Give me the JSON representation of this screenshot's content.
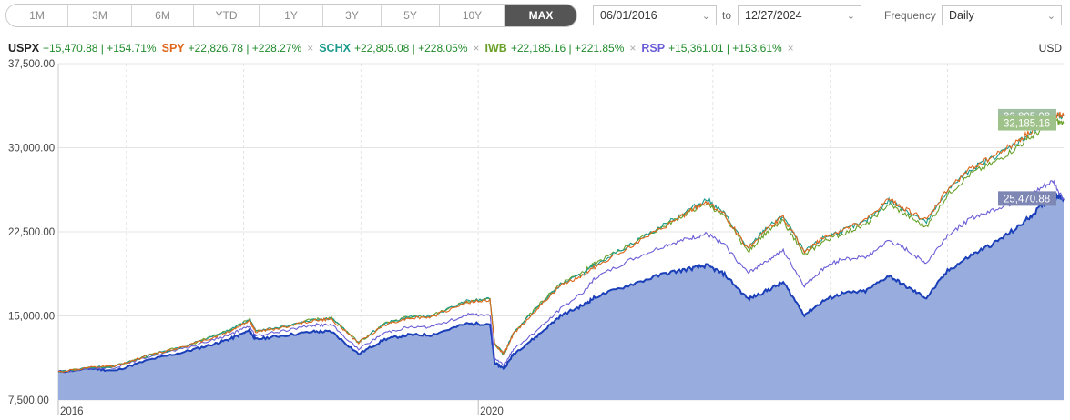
{
  "toolbar": {
    "ranges": [
      {
        "label": "1M",
        "active": false
      },
      {
        "label": "3M",
        "active": false
      },
      {
        "label": "6M",
        "active": false
      },
      {
        "label": "YTD",
        "active": false
      },
      {
        "label": "1Y",
        "active": false
      },
      {
        "label": "3Y",
        "active": false
      },
      {
        "label": "5Y",
        "active": false
      },
      {
        "label": "10Y",
        "active": false
      },
      {
        "label": "MAX",
        "active": true
      }
    ],
    "start_date": "06/01/2016",
    "to_label": "to",
    "end_date": "12/27/2024",
    "frequency_label": "Frequency",
    "frequency_value": "Daily"
  },
  "legend": {
    "currency": "USD",
    "items": [
      {
        "ticker": "USPX",
        "value": "+15,470.88 | +154.71%",
        "color": "#1a3fb8",
        "removable": false
      },
      {
        "ticker": "SPY",
        "value": "+22,826.78 | +228.27%",
        "color": "#e0661b",
        "removable": true
      },
      {
        "ticker": "SCHX",
        "value": "+22,805.08 | +228.05%",
        "color": "#1a9a8c",
        "removable": true
      },
      {
        "ticker": "IWB",
        "value": "+22,185.16 | +221.85%",
        "color": "#6aa12a",
        "removable": true
      },
      {
        "ticker": "RSP",
        "value": "+15,361.01 | +153.61%",
        "color": "#6a5ed6",
        "removable": true
      }
    ],
    "close_icon": "close-icon"
  },
  "chart_data": {
    "type": "line",
    "title": "",
    "xlabel": "",
    "ylabel": "",
    "ylim": [
      7500,
      37500
    ],
    "yticks": [
      7500,
      15000,
      22500,
      30000,
      37500
    ],
    "ytick_labels": [
      "7,500.00",
      "15,000.00",
      "22,500.00",
      "30,000.00",
      "37,500.00"
    ],
    "xlim": [
      2016.42,
      2024.99
    ],
    "xticks": [
      2016.42,
      2020.0
    ],
    "xtick_labels": [
      "2016",
      "2020"
    ],
    "grid": true,
    "end_tags": [
      "32,805.08",
      "32,185.16",
      "25,470.88"
    ],
    "series": [
      {
        "name": "USPX",
        "color": "#1a3fb8",
        "area": true,
        "x": [
          2016.42,
          2016.7,
          2016.9,
          2017.2,
          2017.5,
          2017.75,
          2017.9,
          2018.05,
          2018.1,
          2018.3,
          2018.6,
          2018.75,
          2018.98,
          2019.2,
          2019.4,
          2019.6,
          2019.9,
          2020.1,
          2020.14,
          2020.22,
          2020.3,
          2020.5,
          2020.7,
          2020.9,
          2021.0,
          2021.3,
          2021.6,
          2021.8,
          2021.95,
          2022.1,
          2022.3,
          2022.45,
          2022.6,
          2022.78,
          2022.95,
          2023.1,
          2023.3,
          2023.5,
          2023.65,
          2023.82,
          2024.0,
          2024.2,
          2024.4,
          2024.6,
          2024.75,
          2024.9,
          2024.99
        ],
        "values": [
          10000,
          10300,
          10100,
          11100,
          11800,
          12500,
          13000,
          13700,
          12900,
          13200,
          13600,
          13600,
          11600,
          12900,
          13300,
          13300,
          14300,
          14300,
          10800,
          10300,
          11600,
          13200,
          15000,
          16000,
          16700,
          17800,
          18800,
          19200,
          19500,
          18700,
          16500,
          17200,
          18000,
          15100,
          16400,
          17000,
          17200,
          18600,
          17600,
          16600,
          19000,
          20400,
          21500,
          22900,
          24300,
          25800,
          25470
        ]
      },
      {
        "name": "SPY",
        "color": "#e0661b",
        "area": false,
        "x": [
          2016.42,
          2016.7,
          2016.9,
          2017.2,
          2017.5,
          2017.75,
          2017.9,
          2018.05,
          2018.1,
          2018.3,
          2018.6,
          2018.75,
          2018.98,
          2019.2,
          2019.4,
          2019.6,
          2019.9,
          2020.1,
          2020.14,
          2020.22,
          2020.3,
          2020.5,
          2020.7,
          2020.9,
          2021.0,
          2021.3,
          2021.6,
          2021.8,
          2021.95,
          2022.1,
          2022.3,
          2022.45,
          2022.6,
          2022.78,
          2022.95,
          2023.1,
          2023.3,
          2023.5,
          2023.65,
          2023.82,
          2024.0,
          2024.2,
          2024.4,
          2024.6,
          2024.75,
          2024.9,
          2024.99
        ],
        "values": [
          10000,
          10400,
          10500,
          11500,
          12300,
          13100,
          13700,
          14600,
          13600,
          13900,
          14600,
          14700,
          12600,
          14200,
          14800,
          14900,
          16200,
          16400,
          12500,
          11600,
          13400,
          15600,
          17700,
          18700,
          19400,
          21200,
          23000,
          24300,
          25200,
          24000,
          21000,
          22700,
          23800,
          20700,
          22000,
          22600,
          23500,
          25400,
          24500,
          23500,
          26300,
          28200,
          29300,
          30600,
          31700,
          33100,
          32826
        ]
      },
      {
        "name": "SCHX",
        "color": "#1a9a8c",
        "area": false,
        "x": [
          2016.42,
          2016.7,
          2016.9,
          2017.2,
          2017.5,
          2017.75,
          2017.9,
          2018.05,
          2018.1,
          2018.3,
          2018.6,
          2018.75,
          2018.98,
          2019.2,
          2019.4,
          2019.6,
          2019.9,
          2020.1,
          2020.14,
          2020.22,
          2020.3,
          2020.5,
          2020.7,
          2020.9,
          2021.0,
          2021.3,
          2021.6,
          2021.8,
          2021.95,
          2022.1,
          2022.3,
          2022.45,
          2022.6,
          2022.78,
          2022.95,
          2023.1,
          2023.3,
          2023.5,
          2023.65,
          2023.82,
          2024.0,
          2024.2,
          2024.4,
          2024.6,
          2024.75,
          2024.9,
          2024.99
        ],
        "values": [
          10000,
          10400,
          10500,
          11500,
          12300,
          13200,
          13800,
          14700,
          13700,
          14000,
          14700,
          14800,
          12600,
          14300,
          14900,
          15000,
          16300,
          16500,
          12500,
          11600,
          13500,
          15700,
          17800,
          18800,
          19600,
          21400,
          23200,
          24500,
          25400,
          24100,
          21000,
          22800,
          23900,
          20700,
          22000,
          22600,
          23400,
          25300,
          24400,
          23300,
          26200,
          28100,
          29200,
          30500,
          31600,
          33000,
          32805
        ]
      },
      {
        "name": "IWB",
        "color": "#6aa12a",
        "area": false,
        "x": [
          2016.42,
          2016.7,
          2016.9,
          2017.2,
          2017.5,
          2017.75,
          2017.9,
          2018.05,
          2018.1,
          2018.3,
          2018.6,
          2018.75,
          2018.98,
          2019.2,
          2019.4,
          2019.6,
          2019.9,
          2020.1,
          2020.14,
          2020.22,
          2020.3,
          2020.5,
          2020.7,
          2020.9,
          2021.0,
          2021.3,
          2021.6,
          2021.8,
          2021.95,
          2022.1,
          2022.3,
          2022.45,
          2022.6,
          2022.78,
          2022.95,
          2023.1,
          2023.3,
          2023.5,
          2023.65,
          2023.82,
          2024.0,
          2024.2,
          2024.4,
          2024.6,
          2024.75,
          2024.9,
          2024.99
        ],
        "values": [
          10000,
          10400,
          10500,
          11500,
          12300,
          13200,
          13800,
          14700,
          13700,
          14000,
          14700,
          14800,
          12600,
          14300,
          14900,
          15000,
          16300,
          16500,
          12500,
          11500,
          13500,
          15800,
          17900,
          19000,
          19700,
          21400,
          23100,
          24300,
          25100,
          23800,
          20700,
          22400,
          23500,
          20400,
          21700,
          22300,
          23100,
          25000,
          24000,
          22900,
          25800,
          27700,
          28700,
          30100,
          31200,
          32400,
          32185
        ]
      },
      {
        "name": "RSP",
        "color": "#6a5ed6",
        "area": false,
        "x": [
          2016.42,
          2016.7,
          2016.9,
          2017.2,
          2017.5,
          2017.75,
          2017.9,
          2018.05,
          2018.1,
          2018.3,
          2018.6,
          2018.75,
          2018.98,
          2019.2,
          2019.4,
          2019.6,
          2019.9,
          2020.1,
          2020.14,
          2020.22,
          2020.3,
          2020.5,
          2020.7,
          2020.9,
          2021.0,
          2021.3,
          2021.6,
          2021.8,
          2021.95,
          2022.1,
          2022.3,
          2022.45,
          2022.6,
          2022.78,
          2022.95,
          2023.1,
          2023.3,
          2023.5,
          2023.65,
          2023.82,
          2024.0,
          2024.2,
          2024.4,
          2024.6,
          2024.75,
          2024.9,
          2024.99
        ],
        "values": [
          10000,
          10300,
          10400,
          11400,
          12100,
          12900,
          13400,
          14100,
          13200,
          13600,
          14200,
          14200,
          12000,
          13500,
          14000,
          14000,
          15100,
          15100,
          11300,
          10600,
          12000,
          13700,
          15600,
          17200,
          18400,
          20000,
          21300,
          21900,
          22300,
          21300,
          18800,
          19900,
          20800,
          17700,
          19300,
          20100,
          20200,
          21700,
          20900,
          19700,
          22200,
          23700,
          24500,
          25300,
          26100,
          27000,
          25361
        ]
      }
    ]
  }
}
